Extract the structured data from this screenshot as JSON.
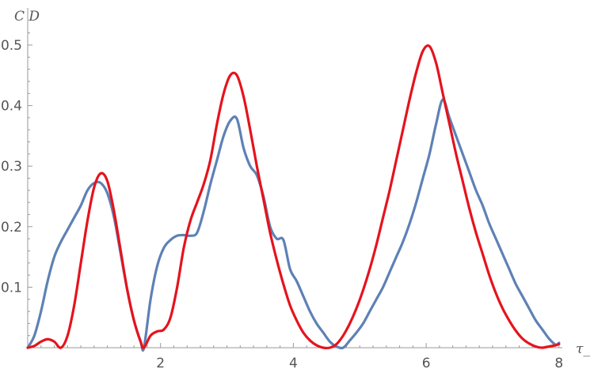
{
  "chart_data": {
    "type": "line",
    "title": "",
    "xlabel": "τ_",
    "ylabel": "C D",
    "xlim": [
      0,
      8.05
    ],
    "ylim": [
      0,
      0.52
    ],
    "xticks": [
      2,
      4,
      6,
      8
    ],
    "xtick_labels": [
      "2",
      "4",
      "6",
      "8"
    ],
    "yticks": [
      0.1,
      0.2,
      0.3,
      0.4,
      0.5
    ],
    "ytick_labels": [
      "0.1",
      "0.2",
      "0.3",
      "0.4",
      "0.5"
    ],
    "grid": false,
    "legend": "none",
    "axis_color": "#999999",
    "series": [
      {
        "color": "#5e81b5",
        "x": [
          0,
          0.1,
          0.2,
          0.3,
          0.4,
          0.5,
          0.6,
          0.7,
          0.8,
          0.9,
          1.0,
          1.1,
          1.2,
          1.3,
          1.4,
          1.5,
          1.6,
          1.7,
          1.75,
          1.85,
          1.95,
          2.05,
          2.15,
          2.25,
          2.35,
          2.45,
          2.55,
          2.65,
          2.75,
          2.85,
          2.95,
          3.05,
          3.15,
          3.25,
          3.35,
          3.45,
          3.55,
          3.65,
          3.75,
          3.85,
          3.95,
          4.05,
          4.15,
          4.25,
          4.35,
          4.45,
          4.55,
          4.65,
          4.75,
          4.85,
          4.95,
          5.05,
          5.15,
          5.25,
          5.35,
          5.45,
          5.55,
          5.65,
          5.75,
          5.85,
          5.95,
          6.05,
          6.15,
          6.25,
          6.35,
          6.45,
          6.55,
          6.65,
          6.75,
          6.85,
          6.95,
          7.05,
          7.15,
          7.25,
          7.35,
          7.45,
          7.55,
          7.65,
          7.75,
          7.85,
          7.95,
          8.0
        ],
        "y": [
          0.0,
          0.02,
          0.06,
          0.11,
          0.15,
          0.175,
          0.195,
          0.215,
          0.235,
          0.26,
          0.272,
          0.272,
          0.255,
          0.215,
          0.155,
          0.095,
          0.045,
          0.01,
          0.0,
          0.08,
          0.135,
          0.165,
          0.178,
          0.185,
          0.186,
          0.185,
          0.19,
          0.225,
          0.27,
          0.31,
          0.35,
          0.375,
          0.378,
          0.33,
          0.3,
          0.285,
          0.25,
          0.2,
          0.18,
          0.178,
          0.13,
          0.11,
          0.085,
          0.06,
          0.04,
          0.025,
          0.01,
          0.002,
          0.0,
          0.012,
          0.025,
          0.04,
          0.06,
          0.08,
          0.1,
          0.125,
          0.15,
          0.175,
          0.205,
          0.24,
          0.28,
          0.32,
          0.37,
          0.41,
          0.38,
          0.35,
          0.32,
          0.29,
          0.26,
          0.235,
          0.205,
          0.18,
          0.155,
          0.13,
          0.105,
          0.085,
          0.065,
          0.045,
          0.03,
          0.015,
          0.005,
          0.008
        ]
      },
      {
        "color": "#e5131d",
        "x": [
          0,
          0.1,
          0.2,
          0.3,
          0.4,
          0.5,
          0.6,
          0.7,
          0.8,
          0.9,
          1.0,
          1.1,
          1.2,
          1.3,
          1.4,
          1.5,
          1.6,
          1.7,
          1.75,
          1.85,
          1.95,
          2.05,
          2.15,
          2.25,
          2.35,
          2.45,
          2.55,
          2.65,
          2.75,
          2.85,
          2.95,
          3.05,
          3.15,
          3.25,
          3.35,
          3.45,
          3.55,
          3.65,
          3.75,
          3.85,
          3.95,
          4.05,
          4.15,
          4.25,
          4.35,
          4.45,
          4.55,
          4.65,
          4.75,
          4.85,
          4.95,
          5.05,
          5.15,
          5.25,
          5.35,
          5.45,
          5.55,
          5.65,
          5.75,
          5.85,
          5.95,
          6.05,
          6.15,
          6.25,
          6.35,
          6.45,
          6.55,
          6.65,
          6.75,
          6.85,
          6.95,
          7.05,
          7.15,
          7.25,
          7.35,
          7.45,
          7.55,
          7.65,
          7.75,
          7.85,
          7.95,
          8.0
        ],
        "y": [
          0.0,
          0.003,
          0.01,
          0.014,
          0.01,
          0.0,
          0.02,
          0.07,
          0.14,
          0.21,
          0.265,
          0.288,
          0.275,
          0.225,
          0.16,
          0.095,
          0.045,
          0.01,
          0.0,
          0.02,
          0.027,
          0.03,
          0.05,
          0.1,
          0.165,
          0.21,
          0.24,
          0.27,
          0.31,
          0.37,
          0.42,
          0.45,
          0.45,
          0.415,
          0.36,
          0.3,
          0.245,
          0.19,
          0.145,
          0.105,
          0.07,
          0.045,
          0.025,
          0.012,
          0.004,
          0.0,
          0.0,
          0.006,
          0.02,
          0.04,
          0.065,
          0.095,
          0.13,
          0.17,
          0.215,
          0.26,
          0.31,
          0.36,
          0.41,
          0.455,
          0.49,
          0.498,
          0.47,
          0.42,
          0.37,
          0.32,
          0.275,
          0.23,
          0.19,
          0.155,
          0.12,
          0.09,
          0.065,
          0.045,
          0.028,
          0.015,
          0.007,
          0.002,
          0.0,
          0.002,
          0.004,
          0.006
        ],
        "_note_unused": null
      }
    ]
  }
}
